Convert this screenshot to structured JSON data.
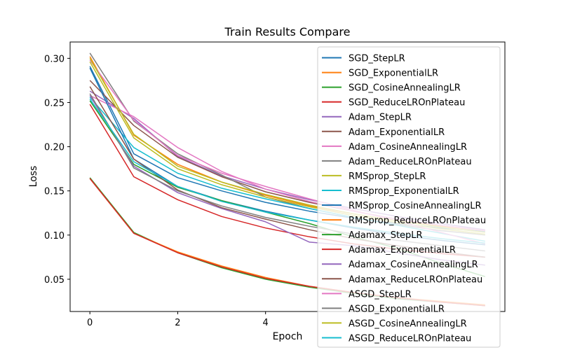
{
  "chart_data": {
    "type": "line",
    "title": "Train Results Compare",
    "xlabel": "Epoch",
    "ylabel": "Loss",
    "xlim": [
      -0.45,
      9.45
    ],
    "ylim": [
      0.0135,
      0.3185
    ],
    "xticks": [
      0,
      2,
      4
    ],
    "xtick_labels": [
      "0",
      "2",
      "4"
    ],
    "yticks": [
      0.05,
      0.1,
      0.15,
      0.2,
      0.25,
      0.3
    ],
    "ytick_labels": [
      "0.05",
      "0.10",
      "0.15",
      "0.20",
      "0.25",
      "0.30"
    ],
    "grid": false,
    "legend_position": "upper-right",
    "x": [
      0,
      1,
      2,
      3,
      4,
      5,
      6,
      7,
      8,
      9
    ],
    "series": [
      {
        "name": "SGD_StepLR",
        "color": "#1f77b4",
        "values": [
          0.291,
          0.192,
          0.165,
          0.15,
          0.137,
          0.127,
          0.119,
          0.113,
          0.108,
          0.104
        ]
      },
      {
        "name": "SGD_ExponentialLR",
        "color": "#ff7f0e",
        "values": [
          0.302,
          0.213,
          0.18,
          0.16,
          0.145,
          0.133,
          0.124,
          0.116,
          0.11,
          0.105
        ]
      },
      {
        "name": "SGD_CosineAnnealingLR",
        "color": "#2ca02c",
        "values": [
          0.165,
          0.103,
          0.08,
          0.063,
          0.05,
          0.041,
          0.034,
          0.028,
          0.024,
          0.02
        ]
      },
      {
        "name": "SGD_ReduceLROnPlateau",
        "color": "#d62728",
        "values": [
          0.248,
          0.166,
          0.14,
          0.121,
          0.108,
          0.098,
          0.09,
          0.084,
          0.079,
          0.075
        ]
      },
      {
        "name": "Adam_StepLR",
        "color": "#9467bd",
        "values": [
          0.263,
          0.232,
          0.189,
          0.167,
          0.152,
          0.14,
          0.13,
          0.121,
          0.113,
          0.106
        ]
      },
      {
        "name": "Adam_ExponentialLR",
        "color": "#8c564b",
        "values": [
          0.275,
          0.224,
          0.188,
          0.166,
          0.149,
          0.137,
          0.127,
          0.118,
          0.111,
          0.105
        ]
      },
      {
        "name": "Adam_CosineAnnealingLR",
        "color": "#e377c2",
        "values": [
          0.258,
          0.234,
          0.199,
          0.172,
          0.152,
          0.138,
          0.127,
          0.118,
          0.111,
          0.105
        ]
      },
      {
        "name": "Adam_ReduceLROnPlateau",
        "color": "#7f7f7f",
        "values": [
          0.306,
          0.229,
          0.192,
          0.168,
          0.143,
          0.13,
          0.12,
          0.112,
          0.105,
          0.1
        ]
      },
      {
        "name": "RMSprop_StepLR",
        "color": "#bcbd22",
        "values": [
          0.296,
          0.21,
          0.175,
          0.157,
          0.143,
          0.132,
          0.122,
          0.114,
          0.107,
          0.101
        ]
      },
      {
        "name": "RMSprop_ExponentialLR",
        "color": "#17becf",
        "values": [
          0.256,
          0.199,
          0.17,
          0.153,
          0.141,
          0.13,
          0.12,
          0.111,
          0.102,
          0.093
        ]
      },
      {
        "name": "RMSprop_CosineAnnealingLR",
        "color": "#1f77b4",
        "values": [
          0.289,
          0.186,
          0.155,
          0.139,
          0.127,
          0.117,
          0.108,
          0.1,
          0.094,
          0.089
        ]
      },
      {
        "name": "RMSprop_ReduceLROnPlateau",
        "color": "#ff7f0e",
        "values": [
          0.164,
          0.102,
          0.081,
          0.065,
          0.052,
          0.042,
          0.035,
          0.029,
          0.025,
          0.021
        ]
      },
      {
        "name": "Adamax_StepLR",
        "color": "#2ca02c",
        "values": [
          0.252,
          0.18,
          0.154,
          0.139,
          0.126,
          0.113,
          0.098,
          0.085,
          0.068,
          0.053
        ]
      },
      {
        "name": "Adamax_ExponentialLR",
        "color": "#d62728",
        "values": [
          0.164,
          0.102,
          0.08,
          0.064,
          0.051,
          0.042,
          0.035,
          0.029,
          0.024,
          0.02
        ]
      },
      {
        "name": "Adamax_CosineAnnealingLR",
        "color": "#9467bd",
        "values": [
          0.258,
          0.178,
          0.148,
          0.13,
          0.115,
          0.092,
          0.088,
          0.08,
          0.072,
          0.066
        ]
      },
      {
        "name": "Adamax_ReduceLROnPlateau",
        "color": "#8c564b",
        "values": [
          0.268,
          0.186,
          0.151,
          0.131,
          0.118,
          0.106,
          0.096,
          0.088,
          0.081,
          0.075
        ]
      },
      {
        "name": "ASGD_StepLR",
        "color": "#e377c2",
        "values": [
          0.298,
          0.23,
          0.19,
          0.17,
          0.155,
          0.141,
          0.128,
          0.116,
          0.103,
          0.09
        ]
      },
      {
        "name": "ASGD_ExponentialLR",
        "color": "#7f7f7f",
        "values": [
          0.26,
          0.176,
          0.15,
          0.133,
          0.12,
          0.11,
          0.101,
          0.094,
          0.088,
          0.082
        ]
      },
      {
        "name": "ASGD_CosineAnnealingLR",
        "color": "#bcbd22",
        "values": [
          0.3,
          0.214,
          0.178,
          0.16,
          0.146,
          0.134,
          0.124,
          0.116,
          0.109,
          0.103
        ]
      },
      {
        "name": "ASGD_ReduceLROnPlateau",
        "color": "#17becf",
        "values": [
          0.254,
          0.183,
          0.155,
          0.138,
          0.126,
          0.117,
          0.109,
          0.102,
          0.096,
          0.091
        ]
      }
    ]
  }
}
